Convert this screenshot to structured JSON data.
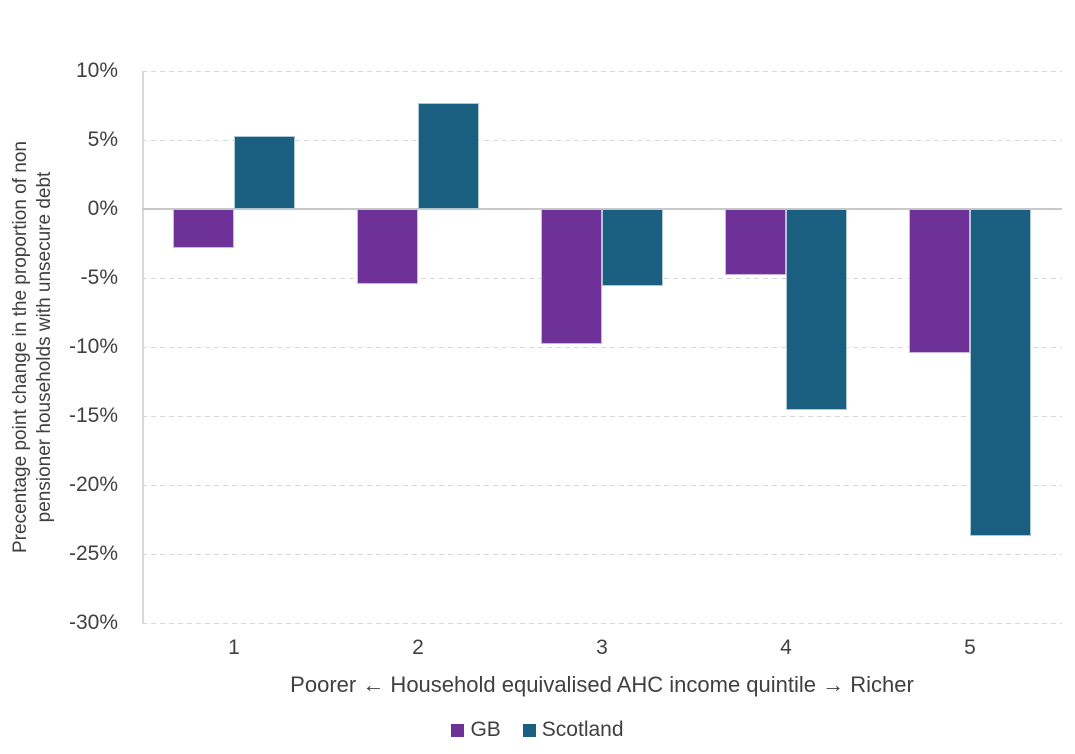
{
  "chart_data": {
    "type": "bar",
    "title": "",
    "categories": [
      "1",
      "2",
      "3",
      "4",
      "5"
    ],
    "series": [
      {
        "name": "GB",
        "color": "#6E3198",
        "values": [
          -2.8,
          -5.4,
          -9.8,
          -4.8,
          -10.4
        ]
      },
      {
        "name": "Scotland",
        "color": "#1A5F80",
        "values": [
          5.3,
          7.7,
          -5.6,
          -14.6,
          -23.7
        ]
      }
    ],
    "xlabel": "Poorer ← Household equivalised AHC income quintile → Richer",
    "ylabel": "Precentage point change in the proportion of non pensioner households with unsecure debt",
    "ylabel_lines": [
      "Precentage point change in the proportion of non",
      "pensioner households with unsecure debt"
    ],
    "ylim": [
      -30,
      10
    ],
    "y_ticks": [
      {
        "label": "10%",
        "value": 10
      },
      {
        "label": "5%",
        "value": 5
      },
      {
        "label": "0%",
        "value": 0
      },
      {
        "label": "-5%",
        "value": -5
      },
      {
        "label": "-10%",
        "value": -10
      },
      {
        "label": "-15%",
        "value": -15
      },
      {
        "label": "-20%",
        "value": -20
      },
      {
        "label": "-25%",
        "value": -25
      },
      {
        "label": "-30%",
        "value": -30
      }
    ],
    "grid": "horizontal-dashed",
    "legend_position": "bottom",
    "colors": {
      "text": "#404040",
      "gridline": "#d9d9d9",
      "zero_line": "#c9c9c9",
      "background": "#ffffff"
    }
  }
}
